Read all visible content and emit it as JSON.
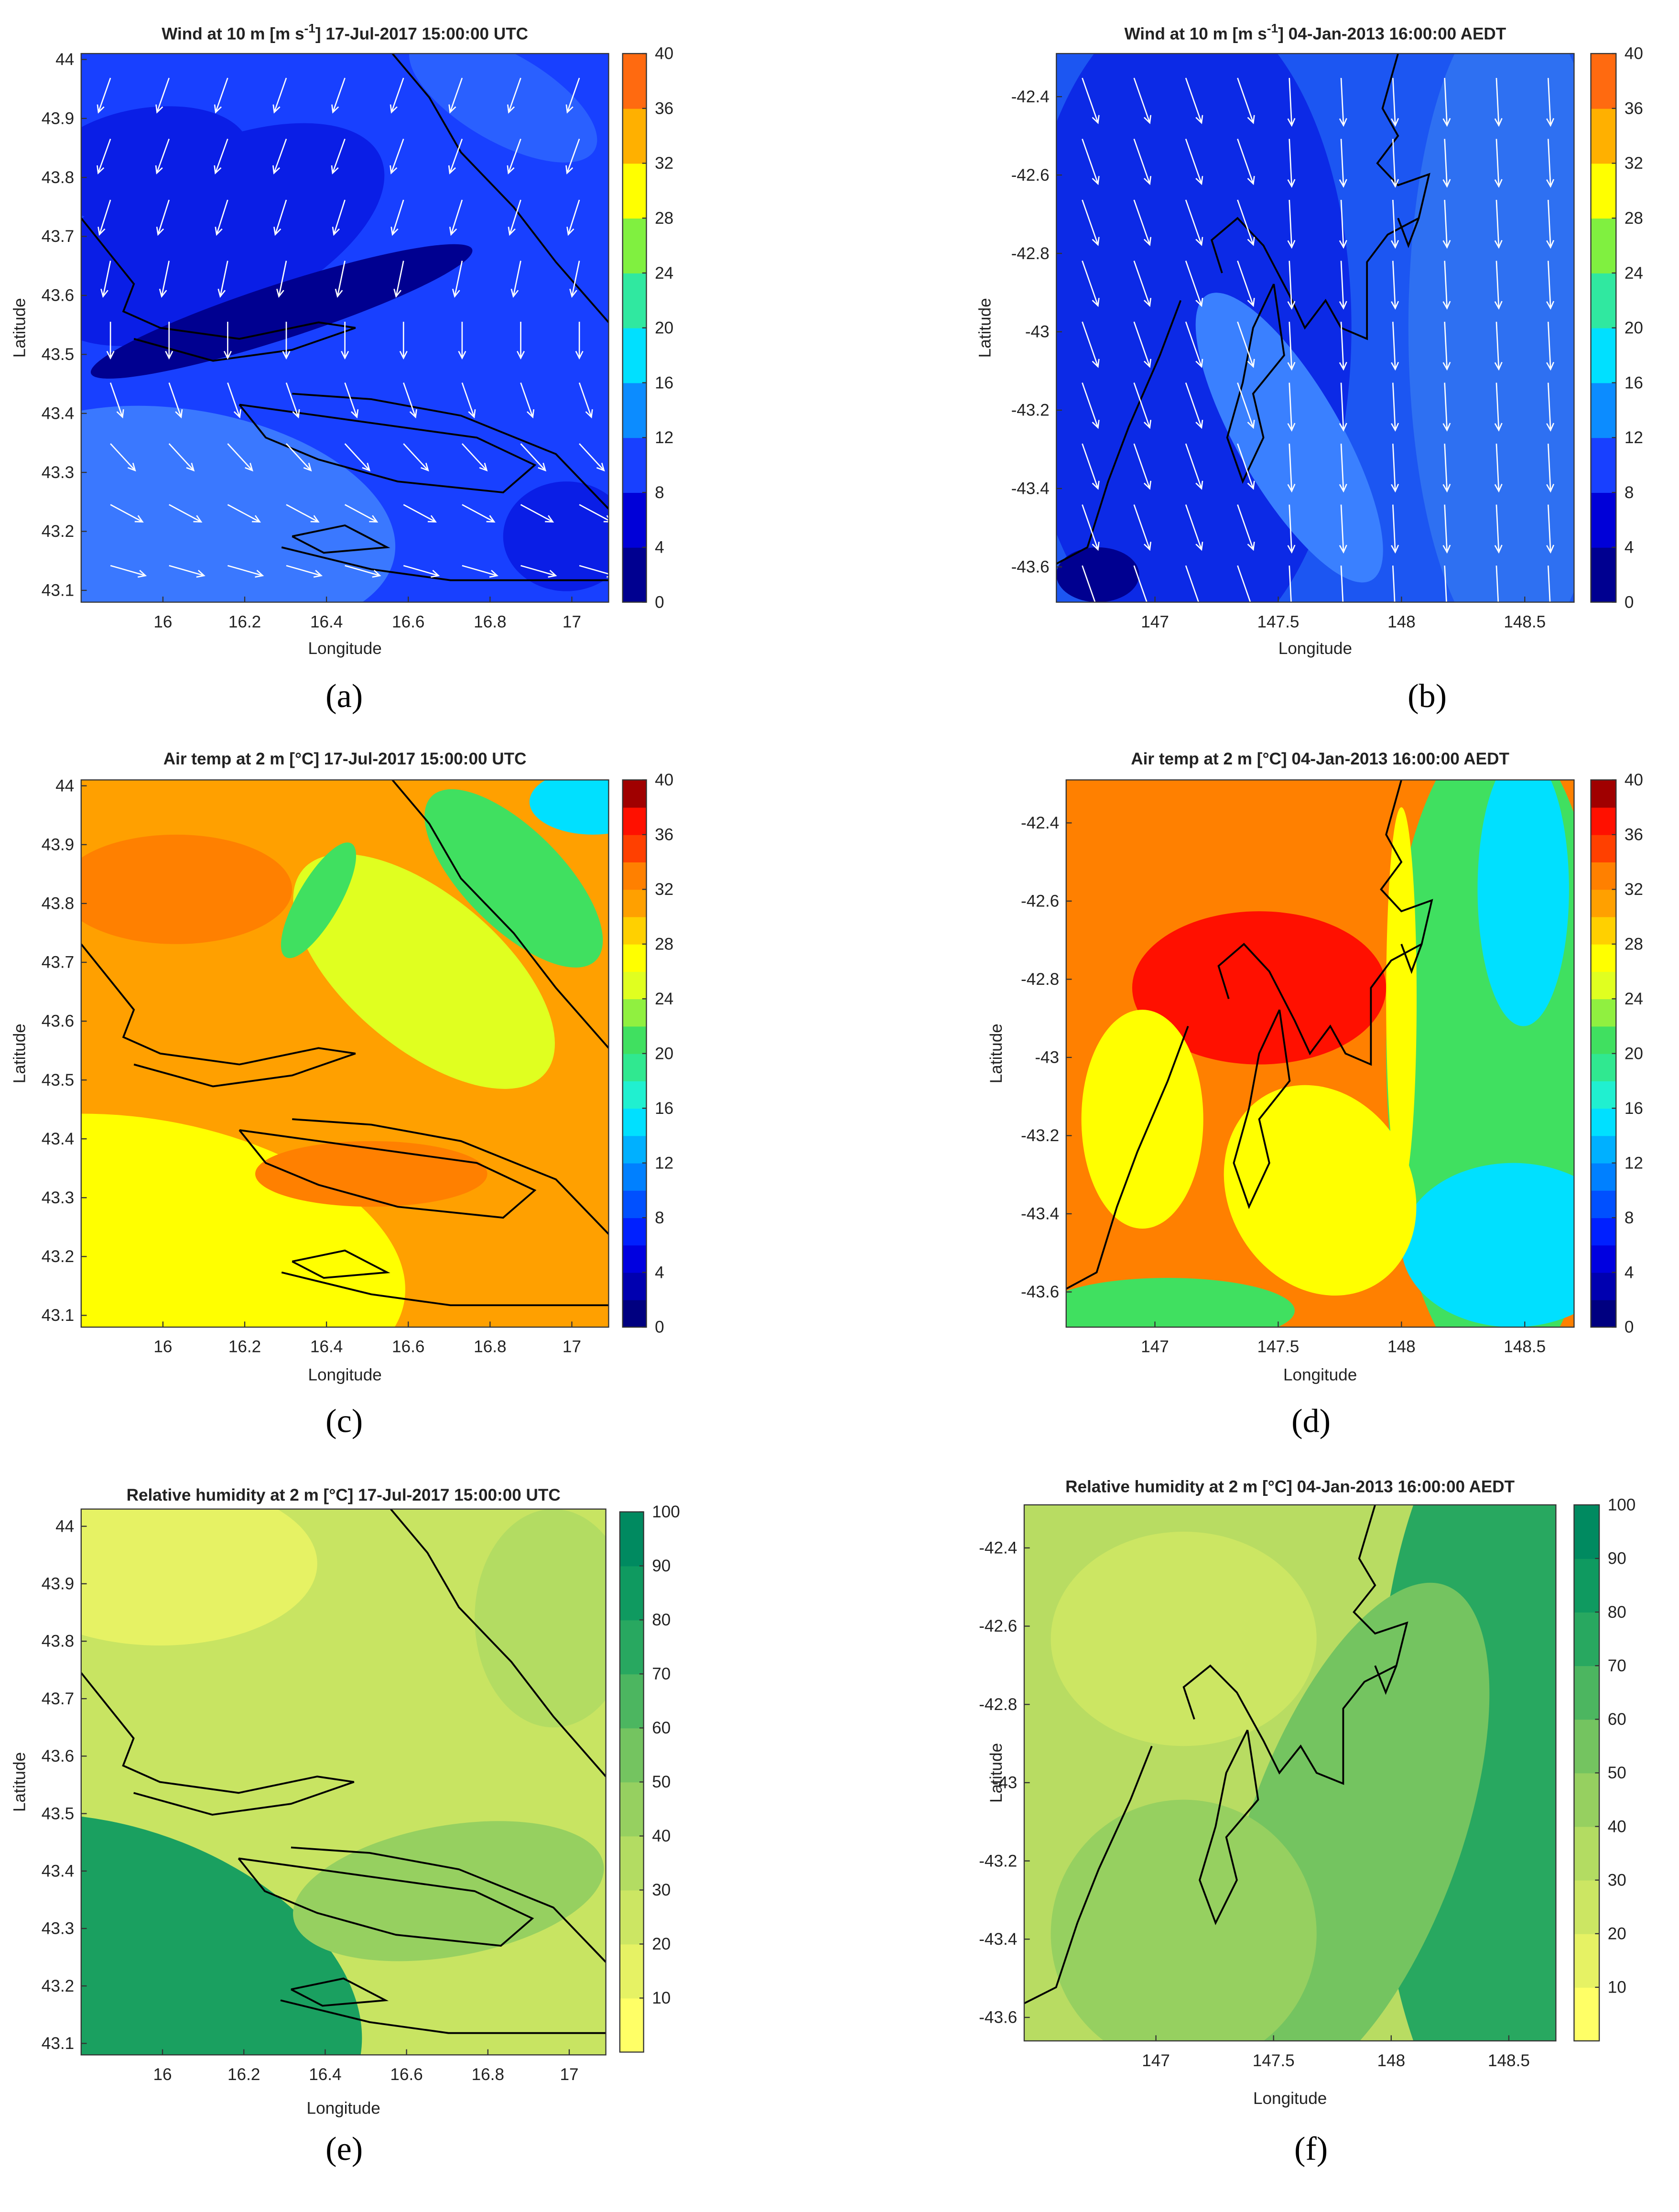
{
  "panels": [
    {
      "title": "Wind at 10 m [m s",
      "title_sup": "-1",
      "title_end": "] 17-Jul-2017 15:00:00 UTC",
      "xlabel": "Longitude",
      "ylabel": "Latitude",
      "xlim": [
        15.8,
        17.09
      ],
      "ylim": [
        43.08,
        44.01
      ],
      "xticks": [
        16,
        16.2,
        16.4,
        16.6,
        16.8,
        17
      ],
      "yticks": [
        43.1,
        43.2,
        43.3,
        43.4,
        43.5,
        43.6,
        43.7,
        43.8,
        43.9,
        44
      ],
      "colorbar": {
        "lim": [
          0,
          40
        ],
        "ticks": [
          0,
          4,
          8,
          12,
          16,
          20,
          24,
          28,
          32,
          36,
          40
        ],
        "colors": [
          "#000090",
          "#0000d8",
          "#1840ff",
          "#0c8cff",
          "#00e0ff",
          "#30e8a0",
          "#80f040",
          "#ffff00",
          "#ffb000",
          "#ff6a10"
        ]
      },
      "label": "(a)"
    },
    {
      "title": "Wind at 10 m [m s",
      "title_sup": "-1",
      "title_end": "] 04-Jan-2013 16:00:00 AEDT",
      "xlabel": "Longitude",
      "ylabel": "Latitude",
      "xlim": [
        146.6,
        148.7
      ],
      "ylim": [
        -43.69,
        -42.29
      ],
      "xticks": [
        147,
        147.5,
        148,
        148.5
      ],
      "yticks": [
        -43.6,
        -43.4,
        -43.2,
        -43,
        -42.8,
        -42.6,
        -42.4
      ],
      "colorbar": {
        "lim": [
          0,
          40
        ],
        "ticks": [
          0,
          4,
          8,
          12,
          16,
          20,
          24,
          28,
          32,
          36,
          40
        ],
        "colors": [
          "#000090",
          "#0000d8",
          "#1840ff",
          "#0c8cff",
          "#00e0ff",
          "#30e8a0",
          "#80f040",
          "#ffff00",
          "#ffb000",
          "#ff6a10"
        ]
      },
      "label": "(b)"
    },
    {
      "title": "Air temp at 2 m [°C] 17-Jul-2017 15:00:00 UTC",
      "xlabel": "Longitude",
      "ylabel": "Latitude",
      "xlim": [
        15.8,
        17.09
      ],
      "ylim": [
        43.08,
        44.01
      ],
      "xticks": [
        16,
        16.2,
        16.4,
        16.6,
        16.8,
        17
      ],
      "yticks": [
        43.1,
        43.2,
        43.3,
        43.4,
        43.5,
        43.6,
        43.7,
        43.8,
        43.9,
        44
      ],
      "colorbar": {
        "lim": [
          0,
          40
        ],
        "ticks": [
          0,
          4,
          8,
          12,
          16,
          20,
          24,
          28,
          32,
          36,
          40
        ],
        "colors": [
          "#000080",
          "#0000b0",
          "#0000e0",
          "#0020ff",
          "#0050ff",
          "#0080ff",
          "#00b0ff",
          "#00e0ff",
          "#20f0d0",
          "#30e890",
          "#40e060",
          "#90f040",
          "#e0ff20",
          "#ffff00",
          "#ffd000",
          "#ffa000",
          "#ff8000",
          "#ff4000",
          "#ff1000",
          "#a00000"
        ]
      },
      "label": "(c)"
    },
    {
      "title": "Air temp at 2 m [°C] 04-Jan-2013 16:00:00 AEDT",
      "xlabel": "Longitude",
      "ylabel": "Latitude",
      "xlim": [
        146.64,
        148.7
      ],
      "ylim": [
        -43.69,
        -42.29
      ],
      "xticks": [
        147,
        147.5,
        148,
        148.5
      ],
      "yticks": [
        -43.6,
        -43.4,
        -43.2,
        -43,
        -42.8,
        -42.6,
        -42.4
      ],
      "colorbar": {
        "lim": [
          0,
          40
        ],
        "ticks": [
          0,
          4,
          8,
          12,
          16,
          20,
          24,
          28,
          32,
          36,
          40
        ],
        "colors": [
          "#000080",
          "#0000b0",
          "#0000e0",
          "#0020ff",
          "#0050ff",
          "#0080ff",
          "#00b0ff",
          "#00e0ff",
          "#20f0d0",
          "#30e890",
          "#40e060",
          "#90f040",
          "#e0ff20",
          "#ffff00",
          "#ffd000",
          "#ffa000",
          "#ff8000",
          "#ff4000",
          "#ff1000",
          "#a00000"
        ]
      },
      "label": "(d)"
    },
    {
      "title": "Relative humidity at 2 m [°C] 17-Jul-2017 15:00:00 UTC",
      "xlabel": "Longitude",
      "ylabel": "Latitude",
      "xlim": [
        15.8,
        17.09
      ],
      "ylim": [
        43.08,
        44.03
      ],
      "xticks": [
        16,
        16.2,
        16.4,
        16.6,
        16.8,
        17
      ],
      "yticks": [
        43.1,
        43.2,
        43.3,
        43.4,
        43.5,
        43.6,
        43.7,
        43.8,
        43.9,
        44
      ],
      "colorbar": {
        "lim": [
          0,
          100
        ],
        "ticks": [
          10,
          20,
          30,
          40,
          50,
          60,
          70,
          80,
          90,
          100
        ],
        "colors": [
          "#ffff66",
          "#e6f264",
          "#cce663",
          "#b3dc62",
          "#96d060",
          "#74c460",
          "#4cb660",
          "#28a860",
          "#0f9a60",
          "#008a60"
        ]
      },
      "label": "(e)"
    },
    {
      "title": "Relative humidity at 2 m [°C] 04-Jan-2013 16:00:00 AEDT",
      "xlabel": "Longitude",
      "ylabel": "Latitude",
      "xlim": [
        146.44,
        148.7
      ],
      "ylim": [
        -43.66,
        -42.29
      ],
      "xticks": [
        147,
        147.5,
        148,
        148.5
      ],
      "yticks": [
        -43.6,
        -43.4,
        -43.2,
        -43,
        -42.8,
        -42.6,
        -42.4
      ],
      "colorbar": {
        "lim": [
          0,
          100
        ],
        "ticks": [
          10,
          20,
          30,
          40,
          50,
          60,
          70,
          80,
          90,
          100
        ],
        "colors": [
          "#ffff66",
          "#e6f264",
          "#cce663",
          "#b3dc62",
          "#96d060",
          "#74c460",
          "#4cb660",
          "#28a860",
          "#0f9a60",
          "#008a60"
        ]
      },
      "label": "(f)"
    }
  ]
}
